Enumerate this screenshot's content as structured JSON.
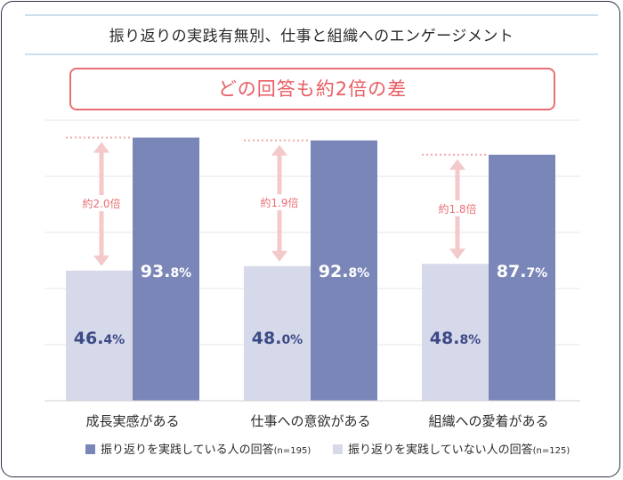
{
  "title": "振り返りの実践有無別、仕事と組織へのエンゲージメント",
  "headline": "どの回答も約2倍の差",
  "colors": {
    "practicing": "#7a86b8",
    "not_practicing": "#d6d9ea",
    "accent": "#ea6f74",
    "ratio_arrow": "#f3c9ca",
    "label_dark": "#3c4a86"
  },
  "chart_data": {
    "type": "bar",
    "categories": [
      "成長実感がある",
      "仕事への意欲がある",
      "組織への愛着がある"
    ],
    "ylim": [
      0,
      100
    ],
    "series": [
      {
        "name": "振り返りを実践していない人の回答",
        "note": "(n=125)",
        "values": [
          46.4,
          48.0,
          48.8
        ],
        "labels": [
          {
            "int": "46.",
            "dec": "4%"
          },
          {
            "int": "48.",
            "dec": "0%"
          },
          {
            "int": "48.",
            "dec": "8%"
          }
        ]
      },
      {
        "name": "振り返りを実践している人の回答",
        "note": "(n=195)",
        "values": [
          93.8,
          92.8,
          87.7
        ],
        "labels": [
          {
            "int": "93.",
            "dec": "8%"
          },
          {
            "int": "92.",
            "dec": "8%"
          },
          {
            "int": "87.",
            "dec": "7%"
          }
        ]
      }
    ],
    "ratios": [
      "約2.0倍",
      "約1.9倍",
      "約1.8倍"
    ],
    "grid": true,
    "legend_position": "bottom"
  },
  "legend": {
    "practicing_label": "振り返りを実践している人の回答",
    "practicing_note": "(n=195)",
    "not_practicing_label": "振り返りを実践していない人の回答",
    "not_practicing_note": "(n=125)"
  }
}
